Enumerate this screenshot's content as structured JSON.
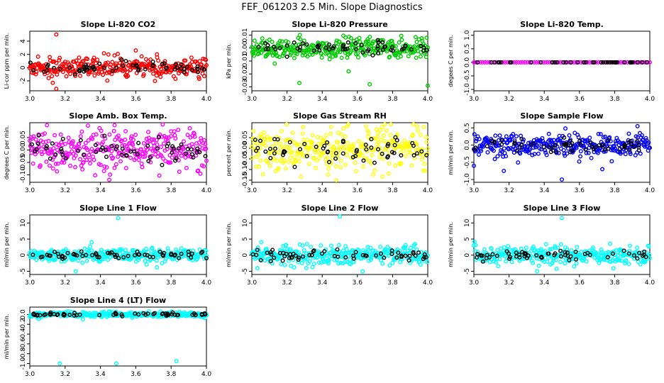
{
  "page": {
    "title": "FEF_061203  2.5 Min. Slope Diagnostics"
  },
  "colors": {
    "black": "#000000",
    "red": "#ff0000",
    "green": "#00cc00",
    "magenta": "#ff00ff",
    "yellow": "#ffff00",
    "blue": "#0000ff",
    "cyan": "#00ffff"
  },
  "chart_data": [
    {
      "type": "scatter",
      "title": "Slope Li-820 CO2",
      "ylabel": "Li-cor ppm per min.",
      "xlim": [
        3.0,
        4.0
      ],
      "ylim": [
        -3.5,
        5.5
      ],
      "xticks": [
        3.0,
        3.2,
        3.4,
        3.6,
        3.8,
        4.0
      ],
      "xtick_labels": [
        "3.0",
        "3.2",
        "3.4",
        "3.6",
        "3.8",
        "4.0"
      ],
      "yticks": [
        -2,
        0,
        2,
        4
      ],
      "ytick_labels": [
        "-2",
        "0",
        "2",
        "4"
      ],
      "color": "#ff0000",
      "spread": 0.7,
      "outliers": [
        {
          "x": 3.15,
          "y": 5.0
        },
        {
          "x": 3.15,
          "y": -3.2
        },
        {
          "x": 3.13,
          "y": -2.3
        },
        {
          "x": 3.6,
          "y": 2.6
        },
        {
          "x": 3.72,
          "y": 2.0
        }
      ],
      "seed": 11
    },
    {
      "type": "scatter",
      "title": "Slope Li-820 Pressure",
      "ylabel": "kPa per min.",
      "xlim": [
        3.0,
        4.0
      ],
      "ylim": [
        -0.033,
        0.013
      ],
      "xticks": [
        3.0,
        3.2,
        3.4,
        3.6,
        3.8,
        4.0
      ],
      "xtick_labels": [
        "3.0",
        "3.2",
        "3.4",
        "3.6",
        "3.8",
        "4.0"
      ],
      "yticks": [
        -0.03,
        -0.02,
        -0.01,
        0.0,
        0.01
      ],
      "ytick_labels": [
        "-0.03",
        "-0.02",
        "-0.01",
        "0.00",
        "0.01"
      ],
      "color": "#00cc00",
      "spread": 0.004,
      "outliers": [
        {
          "x": 3.27,
          "y": -0.027
        },
        {
          "x": 3.67,
          "y": -0.028
        },
        {
          "x": 4.0,
          "y": -0.029
        },
        {
          "x": 3.13,
          "y": -0.012
        },
        {
          "x": 3.55,
          "y": -0.018
        }
      ],
      "seed": 23
    },
    {
      "type": "scatter",
      "title": "Slope Li-820 Temp.",
      "ylabel": "degees C per min.",
      "xlim": [
        3.0,
        4.0
      ],
      "ylim": [
        -1.05,
        1.15
      ],
      "xticks": [
        3.0,
        3.2,
        3.4,
        3.6,
        3.8,
        4.0
      ],
      "xtick_labels": [
        "3.0",
        "3.2",
        "3.4",
        "3.6",
        "3.8",
        "4.0"
      ],
      "yticks": [
        -1.0,
        -0.5,
        0.0,
        0.5,
        1.0
      ],
      "ytick_labels": [
        "-1.0",
        "-0.5",
        "0.0",
        "0.5",
        "1.0"
      ],
      "color": "#ff00ff",
      "spread": 0.0,
      "outliers": [],
      "seed": 5
    },
    {
      "type": "scatter",
      "title": "Slope Amb. Box Temp.",
      "ylabel": "degrees C per min.",
      "xlim": [
        3.0,
        4.0
      ],
      "ylim": [
        -0.13,
        0.11
      ],
      "xticks": [
        3.0,
        3.2,
        3.4,
        3.6,
        3.8,
        4.0
      ],
      "xtick_labels": [
        "3.0",
        "3.2",
        "3.4",
        "3.6",
        "3.8",
        "4.0"
      ],
      "yticks": [
        -0.1,
        -0.05,
        0.0,
        0.05
      ],
      "ytick_labels": [
        "-0.10",
        "-0.05",
        "0.00",
        "0.05"
      ],
      "color": "#ff00ff",
      "spread": 0.04,
      "outliers": [
        {
          "x": 3.48,
          "y": 0.1
        },
        {
          "x": 3.45,
          "y": -0.12
        },
        {
          "x": 3.8,
          "y": 0.075
        }
      ],
      "seed": 37
    },
    {
      "type": "scatter",
      "title": "Slope Gas Stream RH",
      "ylabel": "percent per min.",
      "xlim": [
        3.0,
        4.0
      ],
      "ylim": [
        -0.16,
        0.12
      ],
      "xticks": [
        3.0,
        3.2,
        3.4,
        3.6,
        3.8,
        4.0
      ],
      "xtick_labels": [
        "3.0",
        "3.2",
        "3.4",
        "3.6",
        "3.8",
        "4.0"
      ],
      "yticks": [
        -0.15,
        -0.1,
        -0.05,
        0.0,
        0.05
      ],
      "ytick_labels": [
        "-0.15",
        "-0.10",
        "-0.05",
        "0.00",
        "0.05"
      ],
      "color": "#ffff00",
      "spread": 0.055,
      "outliers": [
        {
          "x": 3.45,
          "y": 0.1
        },
        {
          "x": 3.48,
          "y": -0.15
        },
        {
          "x": 3.73,
          "y": 0.085
        }
      ],
      "seed": 41
    },
    {
      "type": "scatter",
      "title": "Slope Sample Flow",
      "ylabel": "ml/min per min.",
      "xlim": [
        3.0,
        4.0
      ],
      "ylim": [
        -1.08,
        0.65
      ],
      "xticks": [
        3.0,
        3.2,
        3.4,
        3.6,
        3.8,
        4.0
      ],
      "xtick_labels": [
        "3.0",
        "3.2",
        "3.4",
        "3.6",
        "3.8",
        "4.0"
      ],
      "yticks": [
        -1.0,
        -0.5,
        0.0,
        0.5
      ],
      "ytick_labels": [
        "-1.0",
        "-0.5",
        "0.0",
        "0.5"
      ],
      "color": "#0000ff",
      "spread": 0.16,
      "outliers": [
        {
          "x": 3.5,
          "y": -1.0
        },
        {
          "x": 3.17,
          "y": -0.75
        },
        {
          "x": 3.93,
          "y": 0.55
        },
        {
          "x": 3.0,
          "y": -0.6
        },
        {
          "x": 3.73,
          "y": -0.7
        }
      ],
      "seed": 53
    },
    {
      "type": "scatter",
      "title": "Slope Line 1 Flow",
      "ylabel": "ml/min per min.",
      "xlim": [
        3.0,
        4.0
      ],
      "ylim": [
        -6.0,
        12.5
      ],
      "xticks": [
        3.0,
        3.2,
        3.4,
        3.6,
        3.8,
        4.0
      ],
      "xtick_labels": [
        "3.0",
        "3.2",
        "3.4",
        "3.6",
        "3.8",
        "4.0"
      ],
      "yticks": [
        -5,
        0,
        5,
        10
      ],
      "ytick_labels": [
        "-5",
        "0",
        "5",
        "10"
      ],
      "color": "#00ffff",
      "spread": 1.0,
      "outliers": [
        {
          "x": 3.5,
          "y": 11.5
        },
        {
          "x": 3.26,
          "y": -5.0
        },
        {
          "x": 3.35,
          "y": 4.0
        },
        {
          "x": 3.72,
          "y": -3.8
        }
      ],
      "seed": 61
    },
    {
      "type": "scatter",
      "title": "Slope Line 2 Flow",
      "ylabel": "ml/min per min.",
      "xlim": [
        3.0,
        4.0
      ],
      "ylim": [
        -6.0,
        12.5
      ],
      "xticks": [
        3.0,
        3.2,
        3.4,
        3.6,
        3.8,
        4.0
      ],
      "xtick_labels": [
        "3.0",
        "3.2",
        "3.4",
        "3.6",
        "3.8",
        "4.0"
      ],
      "yticks": [
        -5,
        0,
        5,
        10
      ],
      "ytick_labels": [
        "-5",
        "0",
        "5",
        "10"
      ],
      "color": "#00ffff",
      "spread": 1.4,
      "outliers": [
        {
          "x": 3.5,
          "y": 12.0
        },
        {
          "x": 3.63,
          "y": -5.0
        },
        {
          "x": 3.31,
          "y": -4.0
        },
        {
          "x": 3.24,
          "y": -3.8
        }
      ],
      "seed": 67
    },
    {
      "type": "scatter",
      "title": "Slope Line 3 Flow",
      "ylabel": "ml/min per min.",
      "xlim": [
        3.0,
        4.0
      ],
      "ylim": [
        -6.0,
        12.5
      ],
      "xticks": [
        3.0,
        3.2,
        3.4,
        3.6,
        3.8,
        4.0
      ],
      "xtick_labels": [
        "3.0",
        "3.2",
        "3.4",
        "3.6",
        "3.8",
        "4.0"
      ],
      "yticks": [
        -5,
        0,
        5,
        10
      ],
      "ytick_labels": [
        "-5",
        "0",
        "5",
        "10"
      ],
      "color": "#00ffff",
      "spread": 1.3,
      "outliers": [
        {
          "x": 3.5,
          "y": 11.5
        },
        {
          "x": 3.36,
          "y": -5.0
        },
        {
          "x": 3.57,
          "y": -3.5
        },
        {
          "x": 3.47,
          "y": -4.2
        }
      ],
      "seed": 71
    },
    {
      "type": "scatter",
      "title": "Slope Line 4 (LT) Flow",
      "ylabel": "ml/min per min.",
      "xlim": [
        3.0,
        4.0
      ],
      "ylim": [
        -1.05,
        0.15
      ],
      "xticks": [
        3.0,
        3.2,
        3.4,
        3.6,
        3.8,
        4.0
      ],
      "xtick_labels": [
        "3.0",
        "3.2",
        "3.4",
        "3.6",
        "3.8",
        "4.0"
      ],
      "yticks": [
        -1.0,
        -0.8,
        -0.6,
        -0.4,
        -0.2,
        0.0
      ],
      "ytick_labels": [
        "-1.0",
        "-0.8",
        "-0.6",
        "-0.4",
        "-0.2",
        "0.0"
      ],
      "color": "#00ffff",
      "spread": 0.025,
      "outliers": [
        {
          "x": 3.17,
          "y": -1.0
        },
        {
          "x": 3.49,
          "y": -1.0
        },
        {
          "x": 3.83,
          "y": -0.95
        },
        {
          "x": 3.3,
          "y": -0.1
        }
      ],
      "seed": 83
    }
  ]
}
